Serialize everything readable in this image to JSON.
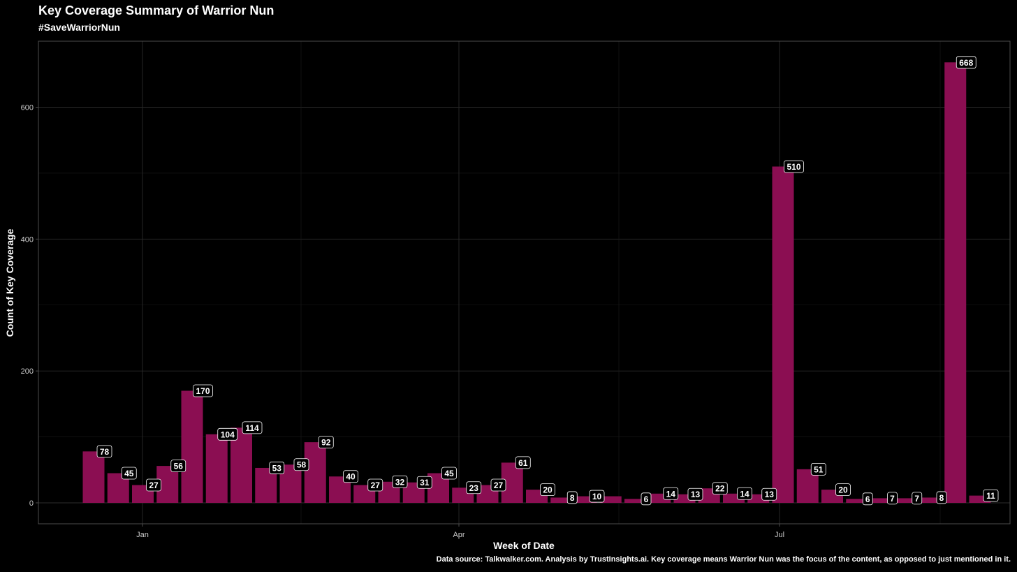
{
  "chart_data": {
    "type": "bar",
    "title": "Key Coverage Summary of Warrior Nun",
    "subtitle": "#SaveWarriorNun",
    "xlabel": "Week of Date",
    "ylabel": "Count of Key Coverage",
    "caption": "Data source: Talkwalker.com. Analysis by TrustInsights.ai. Key coverage means Warrior Nun was the focus of the content, as opposed to just mentioned in it.",
    "x_ticks": [
      "Jan",
      "Apr",
      "Jul"
    ],
    "y_ticks": [
      0,
      200,
      400,
      600
    ],
    "ylim": [
      -33,
      700
    ],
    "grid": true,
    "bar_color": "#8b0e52",
    "background": "#000000",
    "values": [
      78,
      45,
      27,
      56,
      170,
      104,
      114,
      53,
      58,
      92,
      40,
      27,
      32,
      31,
      45,
      23,
      27,
      61,
      20,
      8,
      10,
      10,
      6,
      14,
      13,
      22,
      14,
      13,
      510,
      51,
      20,
      6,
      7,
      7,
      8,
      668,
      11
    ],
    "labels": [
      "78",
      "45",
      "27",
      "56",
      "170",
      "104",
      "114",
      "53",
      "58",
      "92",
      "40",
      "27",
      "32",
      "31",
      "45",
      "23",
      "27",
      "61",
      "20",
      "8",
      "10",
      "",
      "6",
      "14",
      "13",
      "22",
      "14",
      "13",
      "510",
      "51",
      "20",
      "6",
      "7",
      "7",
      "8",
      "668",
      "11"
    ]
  }
}
